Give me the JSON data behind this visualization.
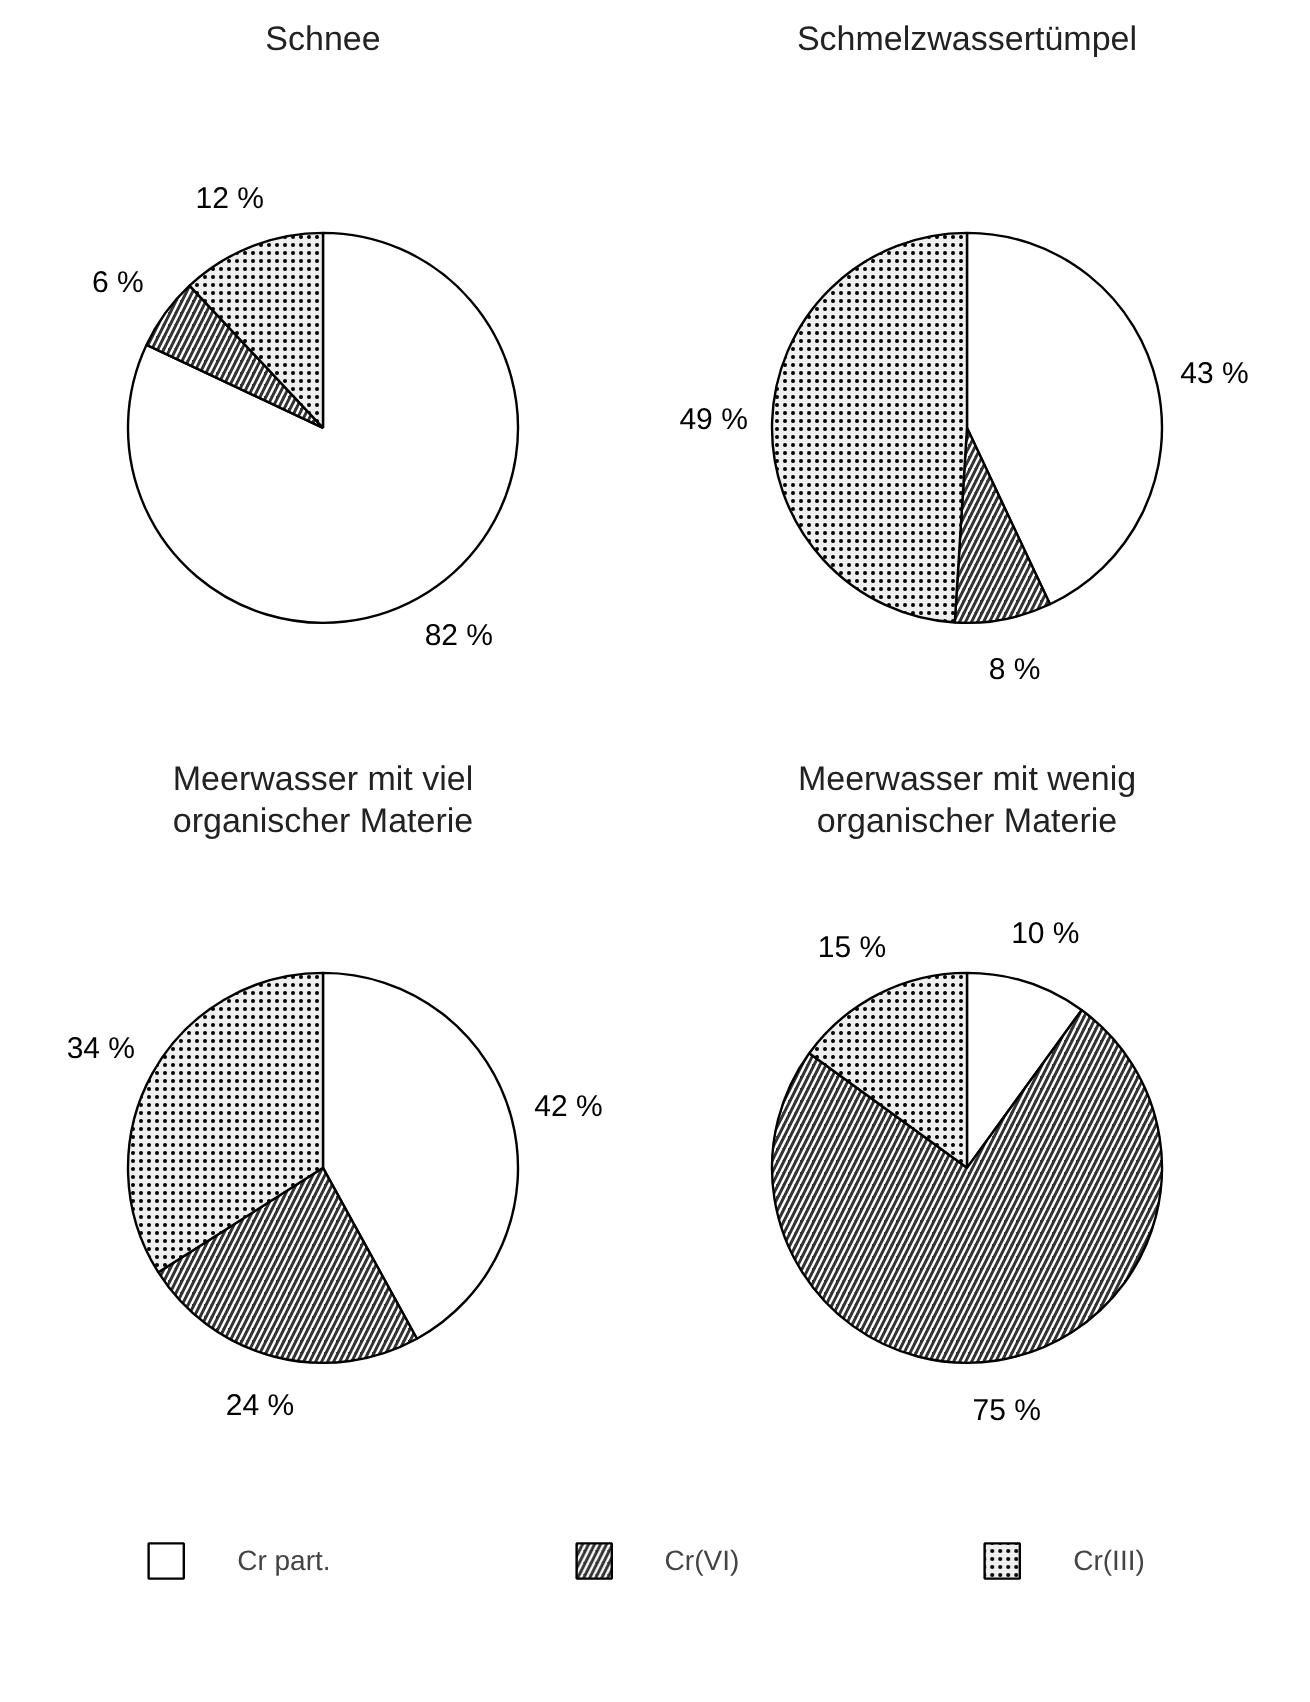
{
  "chart_data": [
    {
      "type": "pie",
      "title": "Schnee",
      "categories": [
        "Cr part.",
        "Cr(VI)",
        "Cr(III)"
      ],
      "values": [
        82,
        6,
        12
      ],
      "colors": [
        "#ffffff",
        "#333333",
        "#eeeeee"
      ],
      "value_labels": [
        "82 %",
        "6 %",
        "12 %"
      ],
      "legend": "bottom"
    },
    {
      "type": "pie",
      "title": "Schmelzwassertümpel",
      "categories": [
        null,
        null,
        null
      ],
      "values": [
        43,
        8,
        49
      ],
      "colors": [
        "#ffffff",
        "#333333",
        "#eeeeee"
      ],
      "value_labels": [
        "43 %",
        "8 %",
        "49 %"
      ]
    },
    {
      "type": "pie",
      "title": "Meerwasser mit viel\norganischer Materie",
      "categories": [
        null,
        null,
        null
      ],
      "values": [
        42,
        24,
        34
      ],
      "colors": [
        "#ffffff",
        "#333333",
        "#eeeeee"
      ],
      "value_labels": [
        "42 %",
        "24 %",
        "34 %"
      ]
    },
    {
      "type": "pie",
      "title": "Meerwasser mit wenig\norganischer Materie",
      "categories": [
        null,
        null,
        null
      ],
      "values": [
        10,
        75,
        15
      ],
      "colors": [
        "#ffffff",
        "#333333",
        "#eeeeee"
      ],
      "value_labels": [
        "10 %",
        "75 %",
        "15 %"
      ]
    }
  ]
}
